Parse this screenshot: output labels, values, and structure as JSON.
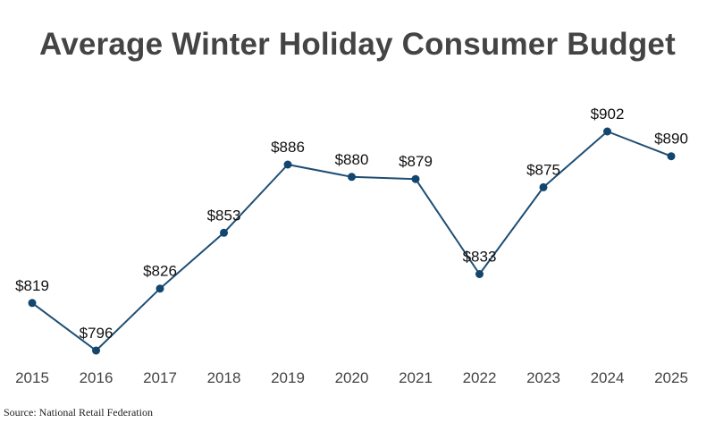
{
  "chart_data": {
    "type": "line",
    "title": "Average Winter Holiday Consumer Budget",
    "categories": [
      "2015",
      "2016",
      "2017",
      "2018",
      "2019",
      "2020",
      "2021",
      "2022",
      "2023",
      "2024",
      "2025"
    ],
    "values": [
      819,
      796,
      826,
      853,
      886,
      880,
      879,
      833,
      875,
      902,
      890
    ],
    "data_labels": [
      "$819",
      "$796",
      "$826",
      "$853",
      "$886",
      "$880",
      "$879",
      "$833",
      "$875",
      "$902",
      "$890"
    ],
    "xlabel": "",
    "ylabel": "",
    "ylim": [
      790,
      911
    ],
    "grid": false,
    "legend": "none",
    "colors": {
      "line": "#1d4e74",
      "marker": "#12466e",
      "title": "#444444",
      "ticks": "#444444"
    }
  },
  "source": "Source: National Retail Federation"
}
